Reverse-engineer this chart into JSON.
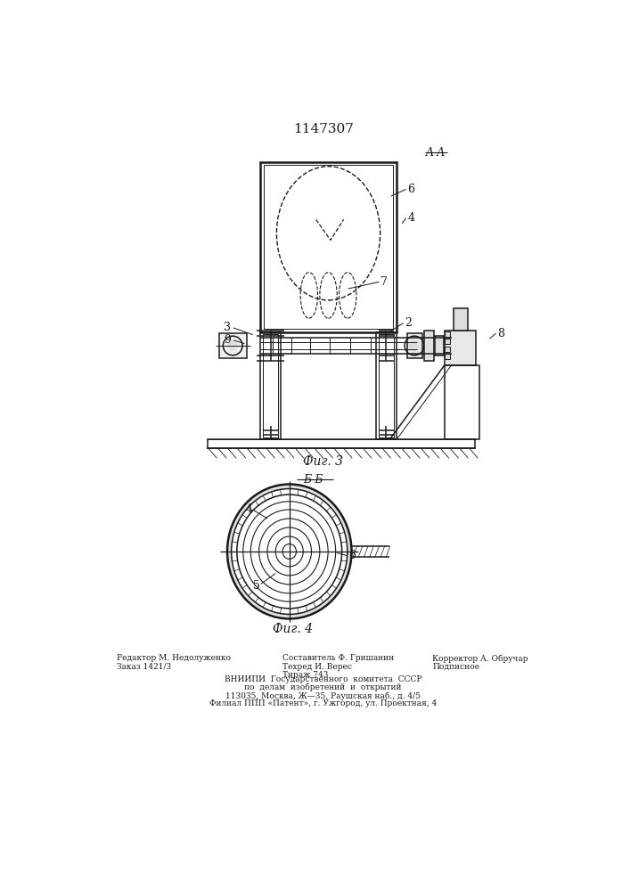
{
  "patent_number": "1147307",
  "fig3_label": "Фиг. 3",
  "fig4_label": "Фиг. 4",
  "section_AA": "A-A",
  "section_BB": "Б-Б",
  "bg_color": "#ffffff",
  "line_color": "#1a1a1a",
  "footer_left_1": "Редактор М. Недолуженко",
  "footer_left_2": "Заказ 1421/3",
  "footer_c1": "Составитель Ф. Гришанин",
  "footer_c2": "Техред И. Верес",
  "footer_c3": "Тираж 743",
  "footer_r1": "Корректор А. Обручар",
  "footer_r2": "Подписное",
  "footer_v1": "ВНИИПИ  Государственного  комитета  СССР",
  "footer_v2": "по  делам  изобретений  и  открытий",
  "footer_v3": "113035, Москва, Ж—35, Раушская наб., д. 4/5",
  "footer_v4": "Филиал ППП «Патент», г. Ужгород, ул. Проектная, 4"
}
